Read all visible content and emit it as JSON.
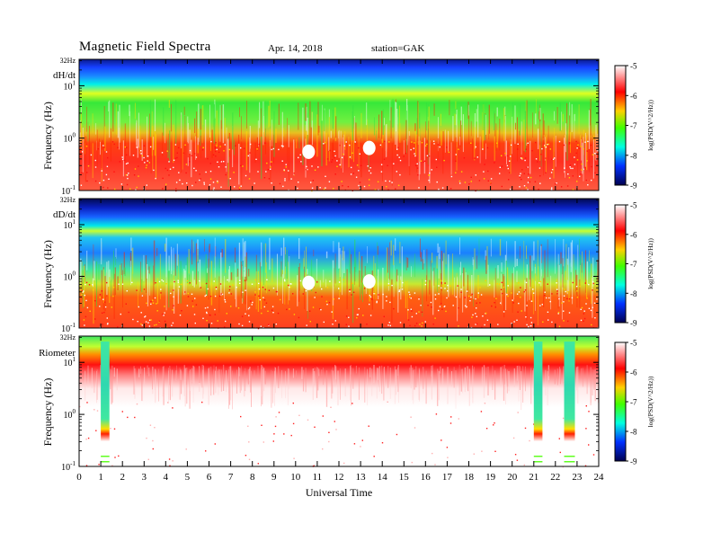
{
  "header": {
    "title": "Magnetic Field Spectra",
    "date": "Apr. 14, 2018",
    "station": "station=GAK"
  },
  "chart_data": [
    {
      "type": "heatmap",
      "panel_label": "dH/dt",
      "top_label": "32Hz",
      "ylabel": "Frequency (Hz)",
      "y_ticks": [
        {
          "value": 0.1,
          "base": "10",
          "exp": "-1"
        },
        {
          "value": 1,
          "base": "10",
          "exp": "0"
        },
        {
          "value": 10,
          "base": "10",
          "exp": "1"
        }
      ],
      "yscale": "log",
      "ylim": [
        0.1,
        32
      ],
      "xlim": [
        0,
        24
      ],
      "colorbar": {
        "label": "log(PSD(V^2/Hz))",
        "range": [
          -9,
          -5
        ],
        "ticks": [
          "-5",
          "-6",
          "-7",
          "-8",
          "-9"
        ]
      },
      "notable_features": [
        {
          "type": "data-gap",
          "x_center": 10.6,
          "y_center": 0.55
        },
        {
          "type": "data-gap",
          "x_center": 13.4,
          "y_center": 0.65
        }
      ]
    },
    {
      "type": "heatmap",
      "panel_label": "dD/dt",
      "top_label": "32Hz",
      "ylabel": "Frequency (Hz)",
      "y_ticks": [
        {
          "value": 0.1,
          "base": "10",
          "exp": "-1"
        },
        {
          "value": 1,
          "base": "10",
          "exp": "0"
        },
        {
          "value": 10,
          "base": "10",
          "exp": "1"
        }
      ],
      "yscale": "log",
      "ylim": [
        0.1,
        32
      ],
      "xlim": [
        0,
        24
      ],
      "colorbar": {
        "label": "log(PSD(V^2/Hz))",
        "range": [
          -9,
          -5
        ],
        "ticks": [
          "-5",
          "-6",
          "-7",
          "-8",
          "-9"
        ]
      },
      "notable_features": [
        {
          "type": "data-gap",
          "x_center": 10.6,
          "y_center": 0.75
        },
        {
          "type": "data-gap",
          "x_center": 13.4,
          "y_center": 0.8
        }
      ]
    },
    {
      "type": "heatmap",
      "panel_label": "Riometer",
      "top_label": "32Hz",
      "ylabel": "Frequency (Hz)",
      "y_ticks": [
        {
          "value": 0.1,
          "base": "10",
          "exp": "-1"
        },
        {
          "value": 1,
          "base": "10",
          "exp": "0"
        },
        {
          "value": 10,
          "base": "10",
          "exp": "1"
        }
      ],
      "yscale": "log",
      "ylim": [
        0.1,
        32
      ],
      "xlim": [
        0,
        24
      ],
      "xlabel": "Universal Time",
      "x_ticks": [
        "0",
        "1",
        "2",
        "3",
        "4",
        "5",
        "6",
        "7",
        "8",
        "9",
        "10",
        "11",
        "12",
        "13",
        "14",
        "15",
        "16",
        "17",
        "18",
        "19",
        "20",
        "21",
        "22",
        "23",
        "24"
      ],
      "colorbar": {
        "label": "log(PSD(V^2/Hz))",
        "range": [
          -9,
          -5
        ],
        "ticks": [
          "-5",
          "-6",
          "-7",
          "-8",
          "-9"
        ]
      },
      "notable_features": [
        {
          "type": "vertical-stripe",
          "x_start": 1.0,
          "x_end": 1.4
        },
        {
          "type": "vertical-stripe",
          "x_start": 21.0,
          "x_end": 21.4
        },
        {
          "type": "vertical-stripe",
          "x_start": 22.4,
          "x_end": 22.9
        }
      ]
    }
  ]
}
